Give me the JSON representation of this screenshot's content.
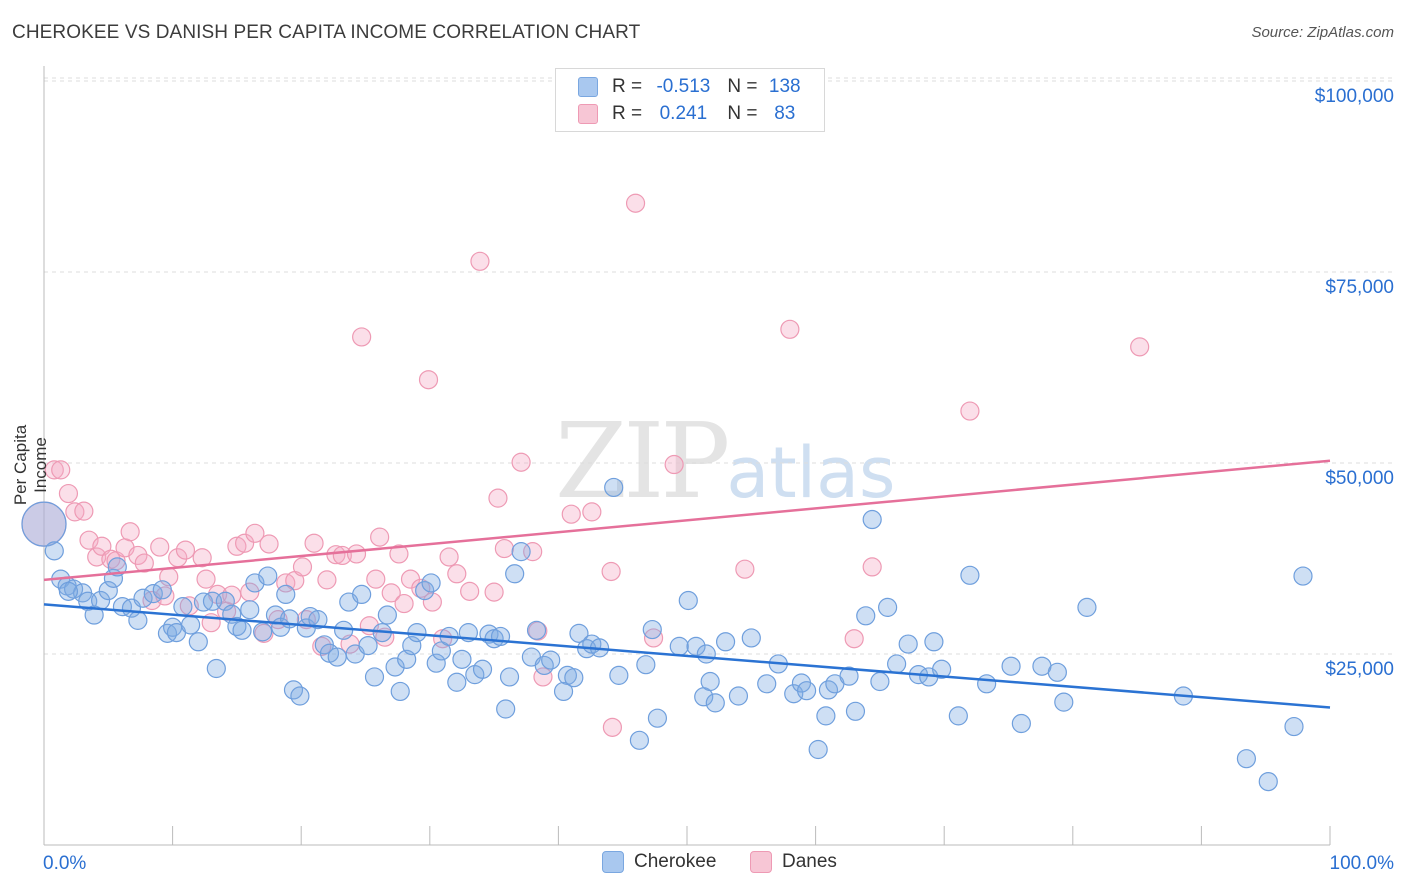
{
  "header": {
    "title": "CHEROKEE VS DANISH PER CAPITA INCOME CORRELATION CHART",
    "source": "Source: ZipAtlas.com"
  },
  "watermark": {
    "zip": "ZIP",
    "atlas": "atlas"
  },
  "legend": {
    "r_label": "R =",
    "n_label": "N =",
    "rows": [
      {
        "name": "Cherokee",
        "r": "-0.513",
        "n": "138",
        "fill": "#a9c8ef",
        "stroke": "#7aa7e0"
      },
      {
        "name": "Danes",
        "r": "0.241",
        "n": "83",
        "fill": "#f7c6d5",
        "stroke": "#ee9ab4"
      }
    ]
  },
  "colors": {
    "blue_point_fill": "rgba(126,170,226,0.38)",
    "blue_point_stroke": "#6f9fdd",
    "blue_line": "#2b73d3",
    "pink_point_fill": "rgba(244,172,196,0.38)",
    "pink_point_stroke": "#ee9ab4",
    "pink_line": "#e5709a",
    "grid": "#dddddd",
    "axis_label": "#2a6fd1"
  },
  "chart_data": {
    "type": "scatter",
    "title": "CHEROKEE VS DANISH PER CAPITA INCOME CORRELATION CHART",
    "xlabel": "",
    "ylabel": "Per Capita Income",
    "xlim": [
      0,
      100
    ],
    "ylim": [
      0,
      105000
    ],
    "x_tick_labels": [
      "0.0%",
      "100.0%"
    ],
    "y_ticks": [
      25000,
      50000,
      75000,
      100000
    ],
    "y_tick_labels": [
      "$25,000",
      "$50,000",
      "$75,000",
      "$100,000"
    ],
    "grid": true,
    "legend_position": "top-center",
    "series": [
      {
        "name": "Cherokee",
        "r": -0.513,
        "n": 138,
        "trend": {
          "x": [
            0,
            100
          ],
          "y": [
            31500,
            18000
          ]
        },
        "points": [
          [
            0.0,
            42000
          ],
          [
            0.8,
            38500
          ],
          [
            1.3,
            34800
          ],
          [
            1.8,
            33900
          ],
          [
            2.3,
            33500
          ],
          [
            3.0,
            33000
          ],
          [
            3.4,
            31900
          ],
          [
            3.9,
            30100
          ],
          [
            4.4,
            32000
          ],
          [
            5.0,
            33300
          ],
          [
            5.4,
            34900
          ],
          [
            5.7,
            36400
          ],
          [
            6.1,
            31200
          ],
          [
            6.8,
            31000
          ],
          [
            7.3,
            29400
          ],
          [
            7.7,
            32300
          ],
          [
            8.5,
            32900
          ],
          [
            9.2,
            33400
          ],
          [
            9.6,
            27700
          ],
          [
            10.0,
            28500
          ],
          [
            10.3,
            27800
          ],
          [
            10.8,
            31200
          ],
          [
            11.4,
            28800
          ],
          [
            12.0,
            26600
          ],
          [
            12.4,
            31800
          ],
          [
            13.1,
            31900
          ],
          [
            13.4,
            23100
          ],
          [
            14.1,
            31900
          ],
          [
            14.6,
            30200
          ],
          [
            15.0,
            28600
          ],
          [
            15.4,
            28100
          ],
          [
            16.0,
            30800
          ],
          [
            16.4,
            34300
          ],
          [
            17.0,
            27900
          ],
          [
            17.4,
            35200
          ],
          [
            18.0,
            30100
          ],
          [
            18.4,
            28500
          ],
          [
            18.8,
            32800
          ],
          [
            19.1,
            29600
          ],
          [
            19.4,
            20300
          ],
          [
            19.9,
            19500
          ],
          [
            20.4,
            28400
          ],
          [
            20.7,
            29900
          ],
          [
            21.3,
            29500
          ],
          [
            21.8,
            26200
          ],
          [
            22.2,
            25100
          ],
          [
            22.8,
            24600
          ],
          [
            23.3,
            28100
          ],
          [
            23.7,
            31800
          ],
          [
            24.2,
            25000
          ],
          [
            24.7,
            32800
          ],
          [
            25.2,
            26100
          ],
          [
            25.7,
            22000
          ],
          [
            26.3,
            27800
          ],
          [
            26.7,
            30100
          ],
          [
            27.3,
            23300
          ],
          [
            27.7,
            20100
          ],
          [
            28.2,
            24300
          ],
          [
            28.6,
            26100
          ],
          [
            29.0,
            27800
          ],
          [
            29.6,
            33300
          ],
          [
            30.1,
            34300
          ],
          [
            30.5,
            23800
          ],
          [
            30.9,
            25400
          ],
          [
            31.5,
            27300
          ],
          [
            32.1,
            21300
          ],
          [
            32.5,
            24300
          ],
          [
            33.0,
            27800
          ],
          [
            33.5,
            22300
          ],
          [
            34.1,
            23000
          ],
          [
            34.6,
            27600
          ],
          [
            35.0,
            27000
          ],
          [
            35.5,
            27300
          ],
          [
            35.9,
            17800
          ],
          [
            36.2,
            22000
          ],
          [
            36.6,
            35500
          ],
          [
            37.1,
            38400
          ],
          [
            37.9,
            24600
          ],
          [
            38.3,
            28100
          ],
          [
            38.9,
            23500
          ],
          [
            39.4,
            24200
          ],
          [
            40.4,
            20100
          ],
          [
            40.7,
            22200
          ],
          [
            41.2,
            21900
          ],
          [
            41.6,
            27700
          ],
          [
            42.2,
            25700
          ],
          [
            42.6,
            26300
          ],
          [
            43.2,
            25800
          ],
          [
            44.3,
            46800
          ],
          [
            44.7,
            22200
          ],
          [
            46.3,
            13700
          ],
          [
            46.8,
            23600
          ],
          [
            47.3,
            28200
          ],
          [
            47.7,
            16600
          ],
          [
            49.4,
            26000
          ],
          [
            50.1,
            32000
          ],
          [
            50.7,
            26000
          ],
          [
            51.3,
            19400
          ],
          [
            51.5,
            25000
          ],
          [
            51.8,
            21400
          ],
          [
            52.2,
            18600
          ],
          [
            53.0,
            26600
          ],
          [
            54.0,
            19500
          ],
          [
            55.0,
            27100
          ],
          [
            56.2,
            21100
          ],
          [
            57.1,
            23700
          ],
          [
            58.3,
            19800
          ],
          [
            58.9,
            21200
          ],
          [
            59.3,
            20200
          ],
          [
            60.2,
            12500
          ],
          [
            60.8,
            16900
          ],
          [
            61.0,
            20300
          ],
          [
            61.5,
            21100
          ],
          [
            62.6,
            22100
          ],
          [
            63.1,
            17500
          ],
          [
            63.9,
            30000
          ],
          [
            64.4,
            42600
          ],
          [
            65.0,
            21400
          ],
          [
            65.6,
            31100
          ],
          [
            66.3,
            23700
          ],
          [
            67.2,
            26300
          ],
          [
            68.0,
            22300
          ],
          [
            68.8,
            22000
          ],
          [
            69.2,
            26600
          ],
          [
            69.8,
            23000
          ],
          [
            71.1,
            16900
          ],
          [
            72.0,
            35300
          ],
          [
            73.3,
            21100
          ],
          [
            75.2,
            23400
          ],
          [
            76.0,
            15900
          ],
          [
            77.6,
            23400
          ],
          [
            78.8,
            22600
          ],
          [
            79.3,
            18700
          ],
          [
            81.1,
            31100
          ],
          [
            88.6,
            19500
          ],
          [
            93.5,
            11300
          ],
          [
            95.2,
            8300
          ],
          [
            97.2,
            15500
          ],
          [
            97.9,
            35200
          ],
          [
            1.9,
            33200
          ]
        ]
      },
      {
        "name": "Danes",
        "r": 0.241,
        "n": 83,
        "trend": {
          "x": [
            0,
            100
          ],
          "y": [
            34700,
            50300
          ]
        },
        "points": [
          [
            0.0,
            42000
          ],
          [
            0.8,
            49100
          ],
          [
            1.3,
            49100
          ],
          [
            1.9,
            46000
          ],
          [
            2.4,
            43600
          ],
          [
            3.1,
            43700
          ],
          [
            3.5,
            39900
          ],
          [
            4.1,
            37700
          ],
          [
            4.5,
            39100
          ],
          [
            5.2,
            37400
          ],
          [
            5.6,
            37200
          ],
          [
            6.3,
            38900
          ],
          [
            6.7,
            41000
          ],
          [
            7.3,
            37900
          ],
          [
            7.8,
            36900
          ],
          [
            8.4,
            32000
          ],
          [
            9.0,
            39000
          ],
          [
            9.4,
            32600
          ],
          [
            9.7,
            35100
          ],
          [
            10.4,
            37600
          ],
          [
            11.0,
            38600
          ],
          [
            11.3,
            31300
          ],
          [
            12.3,
            37600
          ],
          [
            12.6,
            34800
          ],
          [
            13.0,
            29100
          ],
          [
            13.5,
            32800
          ],
          [
            14.2,
            30600
          ],
          [
            14.6,
            32700
          ],
          [
            15.0,
            39100
          ],
          [
            15.6,
            39500
          ],
          [
            16.0,
            33100
          ],
          [
            16.4,
            40800
          ],
          [
            17.1,
            27700
          ],
          [
            17.5,
            39400
          ],
          [
            18.2,
            29500
          ],
          [
            18.8,
            34300
          ],
          [
            19.5,
            34600
          ],
          [
            20.1,
            36400
          ],
          [
            20.4,
            29500
          ],
          [
            21.0,
            39500
          ],
          [
            21.6,
            26000
          ],
          [
            22.0,
            34700
          ],
          [
            22.7,
            38000
          ],
          [
            23.2,
            37900
          ],
          [
            23.8,
            26300
          ],
          [
            24.3,
            38100
          ],
          [
            24.7,
            66500
          ],
          [
            25.3,
            28700
          ],
          [
            25.8,
            34800
          ],
          [
            26.1,
            40300
          ],
          [
            26.5,
            27200
          ],
          [
            27.0,
            33000
          ],
          [
            27.6,
            38100
          ],
          [
            28.0,
            31600
          ],
          [
            28.5,
            34800
          ],
          [
            29.3,
            33600
          ],
          [
            29.9,
            60900
          ],
          [
            30.2,
            31800
          ],
          [
            31.0,
            27000
          ],
          [
            31.5,
            37700
          ],
          [
            32.1,
            35500
          ],
          [
            33.1,
            33200
          ],
          [
            33.9,
            76400
          ],
          [
            35.0,
            33100
          ],
          [
            35.3,
            45400
          ],
          [
            35.8,
            38800
          ],
          [
            37.1,
            50100
          ],
          [
            38.0,
            38400
          ],
          [
            38.4,
            28000
          ],
          [
            38.8,
            22000
          ],
          [
            41.0,
            43300
          ],
          [
            42.6,
            43600
          ],
          [
            44.1,
            35800
          ],
          [
            44.2,
            15400
          ],
          [
            46.0,
            84000
          ],
          [
            47.4,
            27100
          ],
          [
            49.0,
            49800
          ],
          [
            54.5,
            36100
          ],
          [
            58.0,
            67500
          ],
          [
            63.0,
            27000
          ],
          [
            64.4,
            36400
          ],
          [
            72.0,
            56800
          ],
          [
            85.2,
            65200
          ]
        ]
      }
    ]
  }
}
